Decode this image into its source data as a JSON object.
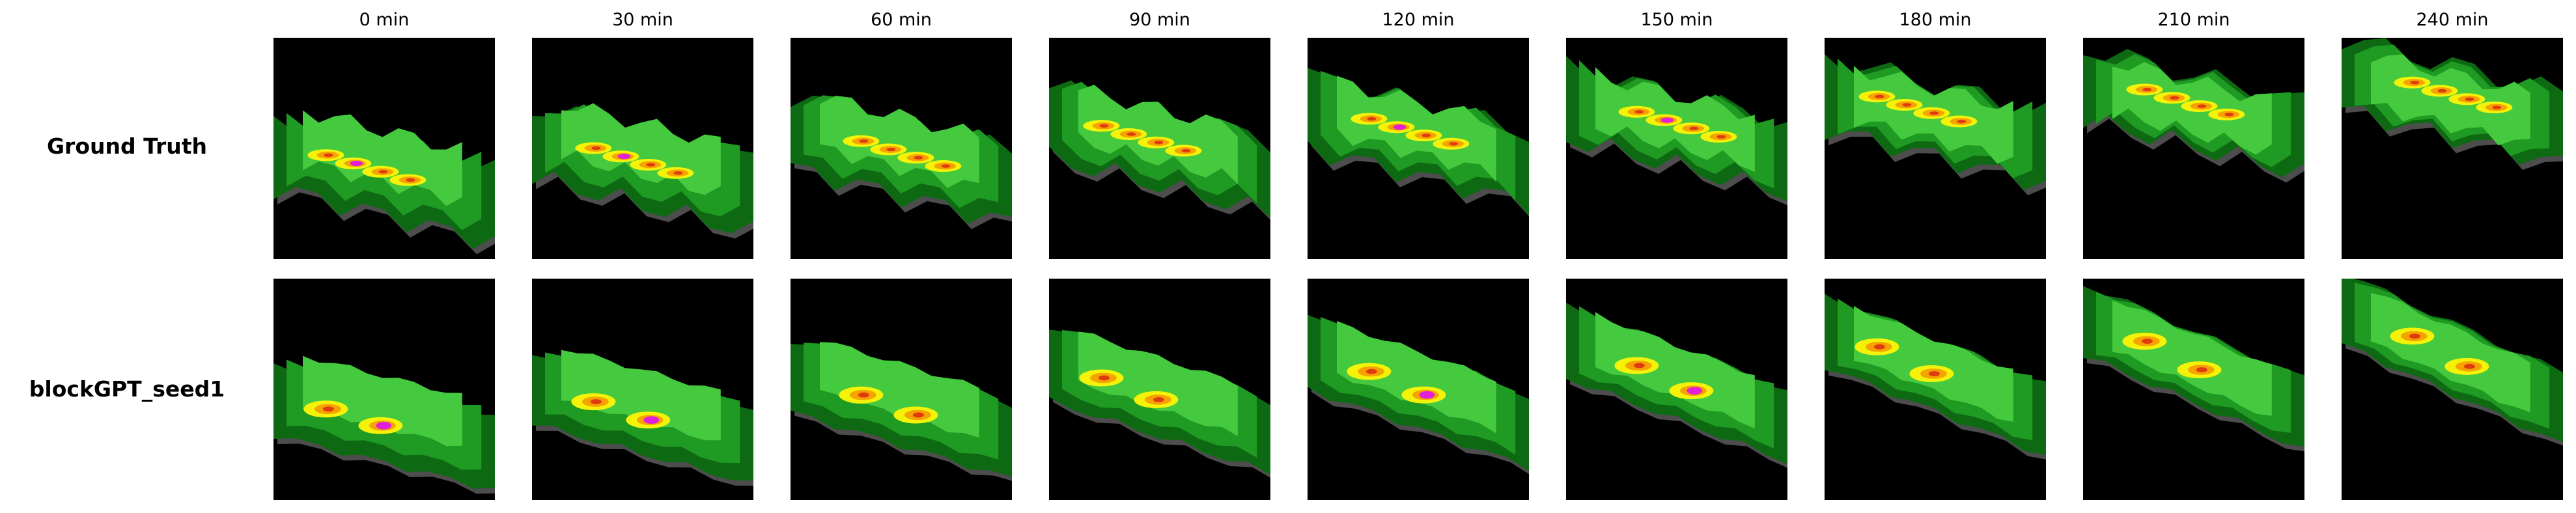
{
  "rows": [
    {
      "label": "Ground Truth"
    },
    {
      "label": "blockGPT_seed1"
    }
  ],
  "columns": [
    {
      "title": "0 min"
    },
    {
      "title": "30 min"
    },
    {
      "title": "60 min"
    },
    {
      "title": "90 min"
    },
    {
      "title": "120 min"
    },
    {
      "title": "150 min"
    },
    {
      "title": "180 min"
    },
    {
      "title": "210 min"
    },
    {
      "title": "240 min"
    }
  ],
  "colors": {
    "background": "#000000",
    "gray_edge": "#4d4d4d",
    "dark_green": "#0e6a12",
    "mid_green": "#1f9a22",
    "light_green": "#45c93e",
    "yellow": "#f5f20a",
    "orange": "#f5a300",
    "red": "#e03a10",
    "magenta": "#e020d8"
  }
}
